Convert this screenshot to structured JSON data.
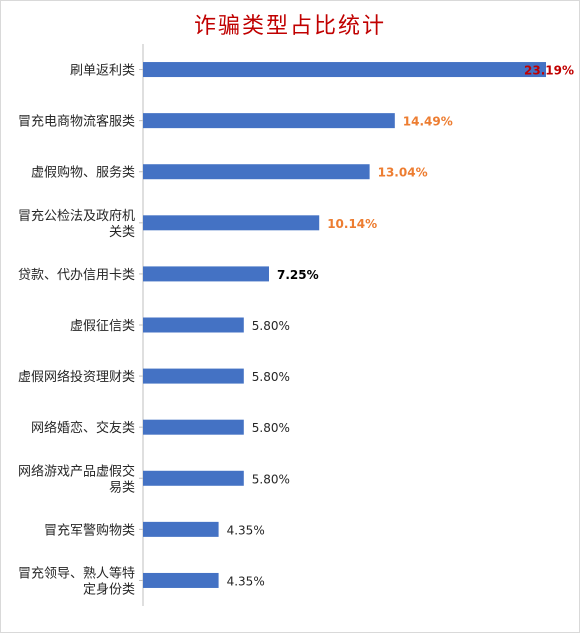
{
  "chart_data": {
    "type": "bar",
    "orientation": "horizontal",
    "title": "诈骗类型占比统计",
    "categories": [
      "刷单返利类",
      "冒充电商物流客服类",
      "虚假购物、服务类",
      "冒充公检法及政府机关类",
      "贷款、代办信用卡类",
      "虚假征信类",
      "虚假网络投资理财类",
      "网络婚恋、交友类",
      "网络游戏产品虚假交易类",
      "冒充军警购物类",
      "冒充领导、熟人等特定身份类"
    ],
    "category_lines": [
      [
        "刷单返利类"
      ],
      [
        "冒充电商物流客服类"
      ],
      [
        "虚假购物、服务类"
      ],
      [
        "冒充公检法及政府机",
        "关类"
      ],
      [
        "贷款、代办信用卡类"
      ],
      [
        "虚假征信类"
      ],
      [
        "虚假网络投资理财类"
      ],
      [
        "网络婚恋、交友类"
      ],
      [
        "网络游戏产品虚假交",
        "易类"
      ],
      [
        "冒充军警购物类"
      ],
      [
        "冒充领导、熟人等特",
        "定身份类"
      ]
    ],
    "values": [
      23.19,
      14.49,
      13.04,
      10.14,
      7.25,
      5.8,
      5.8,
      5.8,
      5.8,
      4.35,
      4.35
    ],
    "labels": [
      "23.19%",
      "14.49%",
      "13.04%",
      "10.14%",
      "7.25%",
      "5.80%",
      "5.80%",
      "5.80%",
      "5.80%",
      "4.35%",
      "4.35%"
    ],
    "label_colors": [
      "#c00000",
      "#ed7d31",
      "#ed7d31",
      "#ed7d31",
      "#000000",
      "#262626",
      "#262626",
      "#262626",
      "#262626",
      "#262626",
      "#262626"
    ],
    "label_bold": [
      true,
      true,
      true,
      true,
      true,
      false,
      false,
      false,
      false,
      false,
      false
    ],
    "bar_color": "#4472c4",
    "xlim": [
      0,
      23.19
    ],
    "grid": false,
    "legend": "none"
  }
}
